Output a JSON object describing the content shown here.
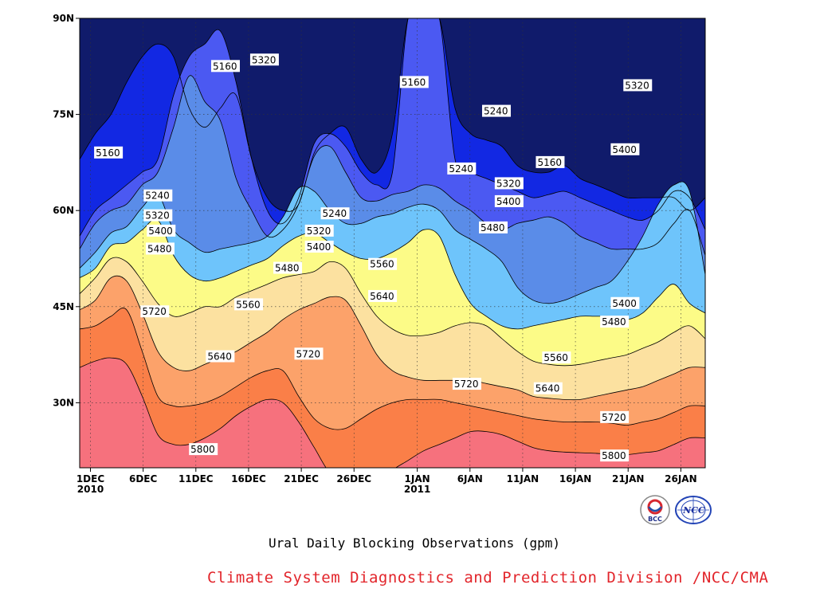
{
  "chart_data": {
    "type": "contour",
    "title": "Ural Daily Blocking Observations (gpm)",
    "x_axis": {
      "ticks": [
        {
          "day": 0,
          "label": "1DEC",
          "sublabel": "2010"
        },
        {
          "day": 5,
          "label": "6DEC"
        },
        {
          "day": 10,
          "label": "11DEC"
        },
        {
          "day": 15,
          "label": "16DEC"
        },
        {
          "day": 20,
          "label": "21DEC"
        },
        {
          "day": 25,
          "label": "26DEC"
        },
        {
          "day": 31,
          "label": "1JAN",
          "sublabel": "2011"
        },
        {
          "day": 36,
          "label": "6JAN"
        },
        {
          "day": 41,
          "label": "11JAN"
        },
        {
          "day": 46,
          "label": "16JAN"
        },
        {
          "day": 51,
          "label": "21JAN"
        },
        {
          "day": 56,
          "label": "26JAN"
        }
      ]
    },
    "y_axis": {
      "range": [
        20,
        90
      ],
      "ticks": [
        {
          "lat": 30,
          "label": "30N"
        },
        {
          "lat": 45,
          "label": "45N"
        },
        {
          "lat": 60,
          "label": "60N"
        },
        {
          "lat": 75,
          "label": "75N"
        },
        {
          "lat": 90,
          "label": "90N"
        }
      ]
    },
    "grid": true,
    "contour_levels": [
      5160,
      5240,
      5320,
      5400,
      5480,
      5560,
      5640,
      5720,
      5800
    ],
    "fill_colors": [
      "#101b6b",
      "#1228e3",
      "#4b59f2",
      "#5a8ce8",
      "#6ec4fb",
      "#fcfb87",
      "#fce1a0",
      "#fca26a",
      "#fa7f48",
      "#f6717d"
    ],
    "series": [
      {
        "level": 5800,
        "lat": [
          35.5,
          36.5,
          37,
          36,
          31,
          25,
          23.5,
          23.5,
          24.5,
          26,
          28,
          29.5,
          30.5,
          30,
          27,
          23,
          19,
          17.5,
          16.5,
          17.5,
          19.5,
          21,
          22.5,
          23.5,
          24.5,
          25.5,
          25.5,
          25,
          24,
          23,
          22.5,
          22.3,
          22.2,
          22.1,
          22,
          21.9,
          22.2,
          22.5,
          23.5,
          24.5,
          24.5
        ]
      },
      {
        "level": 5720,
        "lat": [
          41.5,
          42,
          43.5,
          44.5,
          38,
          31,
          29.5,
          29.5,
          30,
          31,
          32.5,
          34,
          35,
          35,
          31,
          27.5,
          26,
          26,
          27.5,
          29,
          30,
          30.5,
          30.5,
          30.5,
          30,
          29.5,
          29,
          28.5,
          28,
          27.5,
          27.2,
          27,
          27,
          27,
          26.8,
          26.5,
          27,
          27.5,
          28.5,
          29.5,
          29.5
        ]
      },
      {
        "level": 5640,
        "lat": [
          44.5,
          46,
          49.5,
          49,
          44,
          38,
          35.5,
          35,
          36,
          37,
          38,
          39.5,
          41,
          43,
          44.5,
          45.5,
          46.5,
          46,
          42,
          37.5,
          35,
          34,
          33.5,
          33.5,
          33.5,
          33.5,
          33,
          32.5,
          32,
          31,
          30.7,
          30.5,
          30.5,
          31,
          31.5,
          32,
          32.5,
          33.5,
          34.5,
          35.5,
          35.5
        ]
      },
      {
        "level": 5560,
        "lat": [
          47,
          49.5,
          52.5,
          52,
          49,
          45.5,
          43.5,
          44,
          45,
          45,
          46.5,
          47.5,
          48.5,
          49.5,
          50,
          50.5,
          52,
          51,
          47,
          43.5,
          41.5,
          40.5,
          40.5,
          41,
          42,
          42.5,
          42,
          40,
          38,
          36.5,
          36,
          35.8,
          36,
          36.5,
          37,
          37.5,
          38.5,
          39.5,
          41,
          42,
          40
        ]
      },
      {
        "level": 5480,
        "lat": [
          49.5,
          51,
          54.5,
          55,
          57,
          58.5,
          53,
          50,
          49,
          49.5,
          50.5,
          51.5,
          52.5,
          54.5,
          56,
          56.5,
          55,
          53.5,
          52.5,
          52.5,
          53.5,
          55,
          57,
          56,
          50,
          45.5,
          43.5,
          42,
          41.5,
          42,
          42.5,
          43,
          43.5,
          43.5,
          43.5,
          43,
          44,
          46.5,
          48.5,
          45.5,
          44
        ]
      },
      {
        "level": 5400,
        "lat": [
          51,
          53.5,
          56.5,
          57.5,
          60.5,
          62.5,
          57,
          55,
          53.5,
          54,
          54.5,
          55,
          56,
          59,
          63.5,
          63,
          60,
          58,
          58,
          59,
          59.5,
          60.5,
          61,
          60,
          57,
          55.5,
          54,
          52,
          48,
          46,
          45.5,
          46,
          47,
          48,
          49,
          52,
          56,
          61,
          64,
          63,
          50
        ]
      },
      {
        "level": 5320,
        "lat": [
          54,
          58,
          60,
          61,
          64,
          66,
          73,
          81,
          77,
          74,
          65,
          60,
          56,
          57,
          61,
          68.5,
          70,
          66,
          62,
          61.5,
          62.5,
          63,
          64,
          63.5,
          61.5,
          60,
          58,
          57,
          58,
          58.5,
          59,
          58,
          56,
          55,
          54,
          54,
          54,
          55,
          58,
          60,
          53
        ]
      },
      {
        "level": 5240,
        "lat": [
          56,
          60,
          62,
          64,
          66,
          68,
          78,
          84,
          86,
          88,
          80,
          68,
          60,
          58,
          62,
          70.5,
          72,
          70,
          66,
          64,
          66,
          90,
          90,
          90,
          68,
          66,
          65,
          64,
          63,
          62,
          62.5,
          63,
          62,
          61,
          60,
          59,
          58.5,
          60,
          63,
          62,
          57
        ]
      },
      {
        "level": 5160,
        "lat": [
          68,
          72,
          75,
          80,
          84,
          86,
          84,
          76,
          73,
          76,
          78,
          68,
          62,
          60,
          61,
          69,
          72,
          73,
          68,
          66,
          72,
          90,
          90,
          90,
          76,
          72,
          71,
          70,
          67,
          66,
          66,
          67,
          65,
          64,
          63,
          62,
          62,
          62,
          62,
          60,
          62
        ]
      }
    ],
    "contour_labels": [
      {
        "level": "5160",
        "day": 0.5,
        "lat": 69
      },
      {
        "level": "5160",
        "day": 11.6,
        "lat": 82.5
      },
      {
        "level": "5160",
        "day": 29.5,
        "lat": 80
      },
      {
        "level": "5160",
        "day": 42.4,
        "lat": 67.5
      },
      {
        "level": "5240",
        "day": 37.3,
        "lat": 75.5
      },
      {
        "level": "5240",
        "day": 5.2,
        "lat": 62.3
      },
      {
        "level": "5240",
        "day": 22,
        "lat": 59.5
      },
      {
        "level": "5240",
        "day": 34,
        "lat": 66.5
      },
      {
        "level": "5320",
        "day": 15.3,
        "lat": 83.5
      },
      {
        "level": "5320",
        "day": 5.2,
        "lat": 59.2
      },
      {
        "level": "5320",
        "day": 20.5,
        "lat": 56.8
      },
      {
        "level": "5320",
        "day": 38.5,
        "lat": 64.2
      },
      {
        "level": "5320",
        "day": 50.7,
        "lat": 79.5
      },
      {
        "level": "5400",
        "day": 5.5,
        "lat": 56.8
      },
      {
        "level": "5400",
        "day": 20.5,
        "lat": 54.3
      },
      {
        "level": "5400",
        "day": 38.5,
        "lat": 61.4
      },
      {
        "level": "5400",
        "day": 49.5,
        "lat": 69.5
      },
      {
        "level": "5400",
        "day": 49.5,
        "lat": 45.5
      },
      {
        "level": "5480",
        "day": 5.4,
        "lat": 54
      },
      {
        "level": "5480",
        "day": 17.5,
        "lat": 51
      },
      {
        "level": "5480",
        "day": 37,
        "lat": 57.3
      },
      {
        "level": "5480",
        "day": 48.5,
        "lat": 42.6
      },
      {
        "level": "5560",
        "day": 13.8,
        "lat": 45.3
      },
      {
        "level": "5560",
        "day": 26.5,
        "lat": 51.6
      },
      {
        "level": "5560",
        "day": 43,
        "lat": 37
      },
      {
        "level": "5640",
        "day": 26.5,
        "lat": 46.6
      },
      {
        "level": "5640",
        "day": 11.1,
        "lat": 37.2
      },
      {
        "level": "5640",
        "day": 42.2,
        "lat": 32.2
      },
      {
        "level": "5720",
        "day": 4.9,
        "lat": 44.2
      },
      {
        "level": "5720",
        "day": 19.5,
        "lat": 37.6
      },
      {
        "level": "5720",
        "day": 34.5,
        "lat": 32.9
      },
      {
        "level": "5720",
        "day": 48.5,
        "lat": 27.7
      },
      {
        "level": "5800",
        "day": 9.5,
        "lat": 22.7
      },
      {
        "level": "5800",
        "day": 48.5,
        "lat": 21.7
      }
    ]
  },
  "footer": {
    "credit": "Climate System Diagnostics and Prediction Division /NCC/CMA",
    "logo_left": "BCC",
    "logo_right": "NCC"
  }
}
